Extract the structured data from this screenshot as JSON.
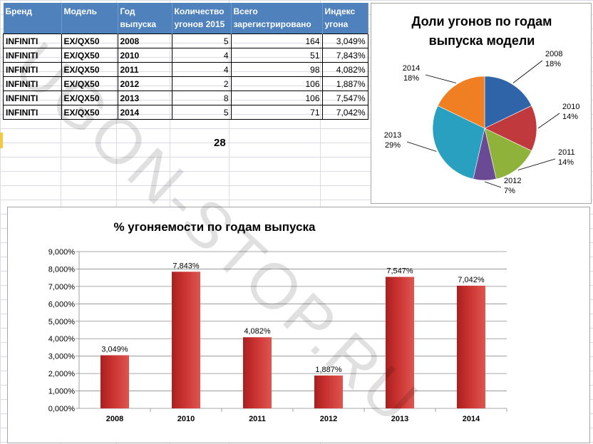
{
  "table": {
    "headers": [
      "Бренд",
      "Модель",
      "Год выпуска",
      "Количество угонов 2015",
      "Всего зарегистрировано",
      "Индекс угона"
    ],
    "rows": [
      [
        "INFINITI",
        "EX/QX50",
        "2008",
        "5",
        "164",
        "3,049%"
      ],
      [
        "INFINITI",
        "EX/QX50",
        "2010",
        "4",
        "51",
        "7,843%"
      ],
      [
        "INFINITI",
        "EX/QX50",
        "2011",
        "4",
        "98",
        "4,082%"
      ],
      [
        "INFINITI",
        "EX/QX50",
        "2012",
        "2",
        "106",
        "1,887%"
      ],
      [
        "INFINITI",
        "EX/QX50",
        "2013",
        "8",
        "106",
        "7,547%"
      ],
      [
        "INFINITI",
        "EX/QX50",
        "2014",
        "5",
        "71",
        "7,042%"
      ]
    ],
    "total": "28"
  },
  "watermark": "UGON-STOP.RU",
  "chart_data": [
    {
      "type": "pie",
      "title": "Доли угонов  по годам выпуска  модели",
      "labels": [
        "2008",
        "2010",
        "2011",
        "2012",
        "2013",
        "2014"
      ],
      "values": [
        5,
        4,
        4,
        2,
        8,
        5
      ],
      "percent_labels": [
        "18%",
        "14%",
        "14%",
        "7%",
        "29%",
        "18%"
      ],
      "colors": [
        "#2f64a8",
        "#c0393c",
        "#8fb33a",
        "#6a4a95",
        "#2aa0c0",
        "#ef7f22"
      ]
    },
    {
      "type": "bar",
      "title": "% угоняемости  по годам  выпуска",
      "categories": [
        "2008",
        "2010",
        "2011",
        "2012",
        "2013",
        "2014"
      ],
      "values": [
        3.049,
        7.843,
        4.082,
        1.887,
        7.547,
        7.042
      ],
      "value_labels": [
        "3,049%",
        "7,843%",
        "4,082%",
        "1,887%",
        "7,547%",
        "7,042%"
      ],
      "yticks": [
        "0,000%",
        "1,000%",
        "2,000%",
        "3,000%",
        "4,000%",
        "5,000%",
        "6,000%",
        "7,000%",
        "8,000%",
        "9,000%"
      ],
      "ylim": [
        0,
        9
      ],
      "bar_color": "#c8312f"
    }
  ]
}
